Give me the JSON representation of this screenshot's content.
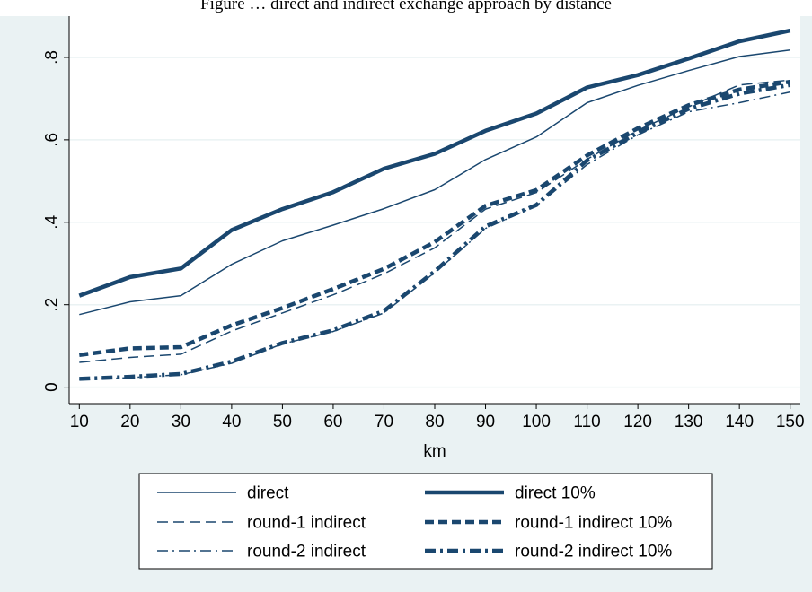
{
  "caption": "Figure … direct and indirect exchange approach by distance",
  "chart_data": {
    "type": "line",
    "title": "",
    "xlabel": "km",
    "ylabel": "",
    "x": [
      10,
      20,
      30,
      40,
      50,
      60,
      70,
      80,
      90,
      100,
      110,
      120,
      130,
      140,
      150
    ],
    "xlim": [
      8,
      152
    ],
    "ylim": [
      -0.04,
      0.9
    ],
    "xticks": [
      10,
      20,
      30,
      40,
      50,
      60,
      70,
      80,
      90,
      100,
      110,
      120,
      130,
      140,
      150
    ],
    "yticks": [
      0,
      0.2,
      0.4,
      0.6,
      0.8
    ],
    "ytick_labels": [
      "0",
      ".2",
      ".4",
      ".6",
      ".8"
    ],
    "grid": true,
    "legend_position": "bottom",
    "series": [
      {
        "name": "direct",
        "style": "thin-solid",
        "values": [
          0.176,
          0.207,
          0.222,
          0.298,
          0.355,
          0.393,
          0.433,
          0.479,
          0.552,
          0.607,
          0.69,
          0.732,
          0.768,
          0.802,
          0.818
        ]
      },
      {
        "name": "direct 10%",
        "style": "thick-solid",
        "values": [
          0.222,
          0.267,
          0.288,
          0.381,
          0.432,
          0.473,
          0.53,
          0.566,
          0.622,
          0.664,
          0.727,
          0.757,
          0.797,
          0.839,
          0.865
        ]
      },
      {
        "name": "round-1 indirect",
        "style": "thin-dash",
        "values": [
          0.06,
          0.072,
          0.08,
          0.136,
          0.18,
          0.224,
          0.275,
          0.338,
          0.432,
          0.472,
          0.553,
          0.623,
          0.68,
          0.733,
          0.745
        ]
      },
      {
        "name": "round-1 indirect 10%",
        "style": "thick-dash",
        "values": [
          0.078,
          0.094,
          0.097,
          0.15,
          0.192,
          0.238,
          0.287,
          0.352,
          0.44,
          0.478,
          0.562,
          0.628,
          0.684,
          0.722,
          0.741
        ]
      },
      {
        "name": "round-2 indirect",
        "style": "thin-dashdot",
        "values": [
          0.018,
          0.023,
          0.03,
          0.058,
          0.105,
          0.135,
          0.18,
          0.278,
          0.385,
          0.44,
          0.54,
          0.612,
          0.668,
          0.69,
          0.716
        ]
      },
      {
        "name": "round-2 indirect 10%",
        "style": "thick-dashdot",
        "values": [
          0.02,
          0.025,
          0.032,
          0.062,
          0.107,
          0.138,
          0.185,
          0.281,
          0.39,
          0.442,
          0.55,
          0.617,
          0.675,
          0.712,
          0.733
        ]
      }
    ]
  },
  "colors": {
    "outer_background": "#eaf2f3",
    "plot_background": "#ffffff",
    "grid": "#eaf2f3",
    "series": "#1a476f",
    "axis": "#000000"
  }
}
